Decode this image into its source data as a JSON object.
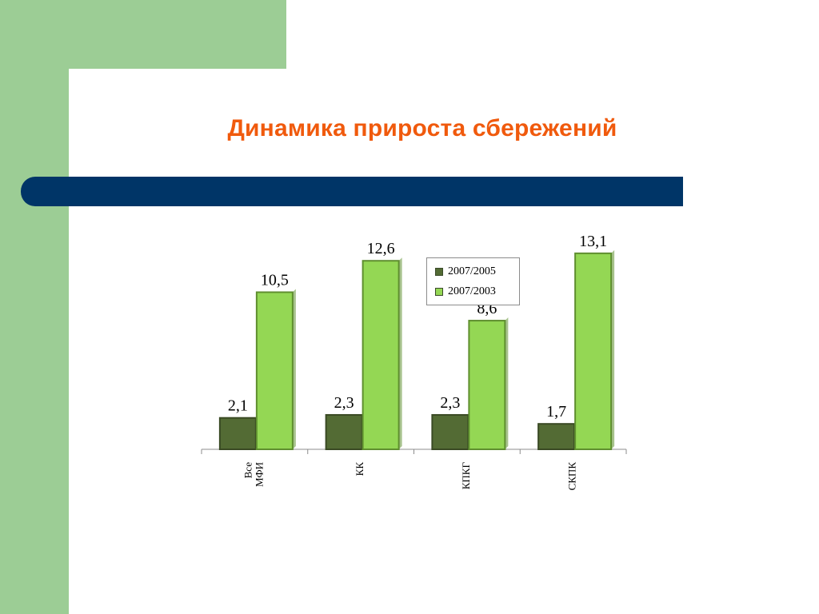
{
  "slide": {
    "title": "Динамика прироста сбережений"
  },
  "colors": {
    "side_green": "#9ccd95",
    "title_orange": "#f05a0d",
    "bar_blue": "#003567",
    "series_dark": "#536b34",
    "series_light": "#94d754"
  },
  "chart_data": {
    "type": "bar",
    "categories": [
      "Все МФИ",
      "КК",
      "КПКГ",
      "СКПК"
    ],
    "series": [
      {
        "name": "2007/2005",
        "values": [
          2.1,
          2.3,
          2.3,
          1.7
        ],
        "labels": [
          "2,1",
          "2,3",
          "2,3",
          "1,7"
        ]
      },
      {
        "name": "2007/2003",
        "values": [
          10.5,
          12.6,
          8.6,
          13.1
        ],
        "labels": [
          "10,5",
          "12,6",
          "8,6",
          "13,1"
        ]
      }
    ],
    "ylim": [
      0,
      14
    ],
    "grid": false,
    "legend": "top-right"
  }
}
